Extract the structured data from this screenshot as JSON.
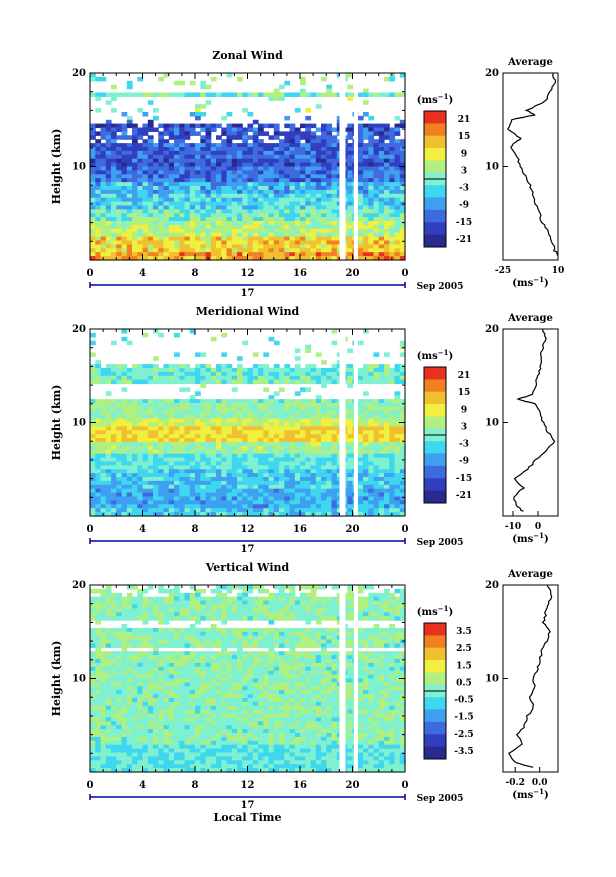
{
  "colors": {
    "scale": [
      "#2a2a8c",
      "#2f3fbf",
      "#3f6ae0",
      "#3f9ff0",
      "#3fd6f0",
      "#7ff0d0",
      "#b0f080",
      "#f0f040",
      "#f0c030",
      "#f08020",
      "#e83020"
    ]
  },
  "chart_data": [
    {
      "type": "heatmap",
      "title": "Zonal Wind",
      "ylabel": "Height (km)",
      "xlabel": "",
      "yticks": [
        "20",
        "10"
      ],
      "xticks": [
        "0",
        "4",
        "8",
        "12",
        "16",
        "20",
        "0"
      ],
      "day_label": "17",
      "date_label": "Sep 2005",
      "unit_label": "(ms",
      "unit_exp": "−1",
      "ylim": [
        0,
        20
      ],
      "xlim": [
        0,
        24
      ],
      "colorbar": {
        "ticks": [
          "21",
          "15",
          "9",
          "3",
          "-3",
          "-9",
          "-15",
          "-21"
        ],
        "vmin": -24,
        "vmax": 24
      },
      "profile": {
        "title": "Average",
        "yticks": [
          "20",
          "10"
        ],
        "xticks": [
          "-25",
          "10"
        ],
        "xlim": [
          -25,
          10
        ],
        "xunit": "(ms",
        "xunit_exp": "−1",
        "heights": [
          0.5,
          1,
          2,
          3,
          4,
          5,
          6,
          7,
          8,
          9,
          10,
          11,
          12,
          12.5,
          13,
          14,
          15,
          15.5,
          16,
          17,
          18,
          19,
          20
        ],
        "values": [
          10,
          8,
          6,
          4,
          0,
          -2,
          -4,
          -6,
          -8,
          -11,
          -14,
          -16,
          -20,
          -18,
          -14,
          -22,
          -20,
          -5,
          -10,
          2,
          5,
          8,
          7
        ]
      }
    },
    {
      "type": "heatmap",
      "title": "Meridional Wind",
      "ylabel": "Height (km)",
      "xlabel": "",
      "yticks": [
        "20",
        "10"
      ],
      "xticks": [
        "0",
        "4",
        "8",
        "12",
        "16",
        "20",
        "0"
      ],
      "day_label": "17",
      "date_label": "Sep 2005",
      "unit_label": "(ms",
      "unit_exp": "−1",
      "ylim": [
        0,
        20
      ],
      "xlim": [
        0,
        24
      ],
      "colorbar": {
        "ticks": [
          "21",
          "15",
          "9",
          "3",
          "-3",
          "-9",
          "-15",
          "-21"
        ],
        "vmin": -24,
        "vmax": 24
      },
      "profile": {
        "title": "Average",
        "yticks": [
          "20",
          "10"
        ],
        "xticks": [
          "-10",
          "0"
        ],
        "xlim": [
          -14,
          8
        ],
        "xunit": "(ms",
        "xunit_exp": "−1",
        "heights": [
          0.5,
          1,
          2,
          3,
          4,
          5,
          6,
          7,
          8,
          9,
          10,
          11,
          12,
          12.5,
          13,
          14,
          15,
          16,
          17,
          18,
          19,
          20
        ],
        "values": [
          -6,
          -8,
          -10,
          -6,
          -9,
          -4,
          -1,
          3,
          7,
          4,
          2,
          1,
          -1,
          -8,
          -2,
          -1,
          0,
          1,
          1,
          2,
          3,
          2
        ]
      }
    },
    {
      "type": "heatmap",
      "title": "Vertical Wind",
      "ylabel": "Height (km)",
      "xlabel": "Local Time",
      "yticks": [
        "20",
        "10"
      ],
      "xticks": [
        "0",
        "4",
        "8",
        "12",
        "16",
        "20",
        "0"
      ],
      "day_label": "17",
      "date_label": "Sep 2005",
      "unit_label": "(ms",
      "unit_exp": "−1",
      "ylim": [
        0,
        20
      ],
      "xlim": [
        0,
        24
      ],
      "colorbar": {
        "ticks": [
          "3.5",
          "2.5",
          "1.5",
          "0.5",
          "-0.5",
          "-1.5",
          "-2.5",
          "-3.5"
        ],
        "vmin": -4,
        "vmax": 4
      },
      "profile": {
        "title": "Average",
        "yticks": [
          "20",
          "10"
        ],
        "xticks": [
          "-0.2",
          "0.0"
        ],
        "xlim": [
          -0.3,
          0.15
        ],
        "xunit": "(ms",
        "xunit_exp": "−1",
        "heights": [
          0.5,
          1,
          2,
          3,
          4,
          5,
          6,
          7,
          8,
          9,
          10,
          11,
          12,
          13,
          14,
          15,
          16,
          17,
          18,
          19,
          20
        ],
        "values": [
          -0.05,
          -0.2,
          -0.25,
          -0.15,
          -0.18,
          -0.12,
          -0.1,
          -0.05,
          -0.08,
          -0.04,
          -0.06,
          -0.02,
          0.0,
          0.02,
          0.06,
          0.08,
          0.03,
          0.05,
          0.07,
          0.1,
          0.06
        ]
      }
    }
  ]
}
